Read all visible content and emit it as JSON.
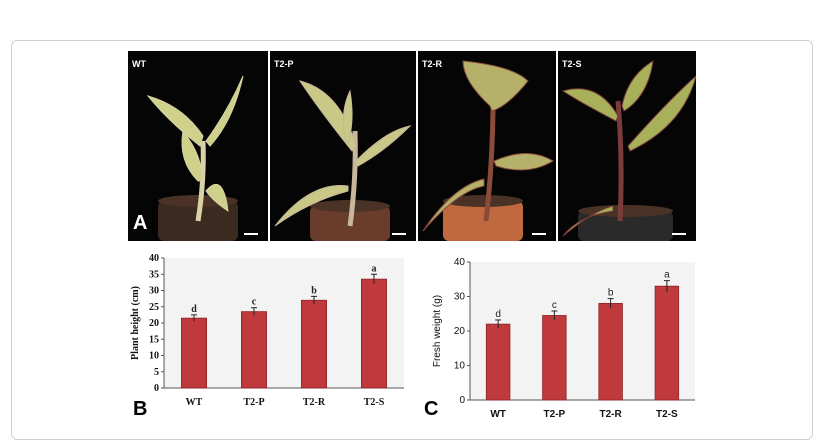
{
  "photos": [
    {
      "label": "WT",
      "stem_color": "#d8d2a6",
      "leaf_color": "#cfd08a",
      "pot_color": "#3a2a1f"
    },
    {
      "label": "T2-P",
      "stem_color": "#c8b79a",
      "leaf_color": "#c9c886",
      "pot_color": "#6a3c2c"
    },
    {
      "label": "T2-R",
      "stem_color": "#8a4b3b",
      "leaf_color": "#b5b06a",
      "pot_color": "#c0683e"
    },
    {
      "label": "T2-S",
      "stem_color": "#7a3c3a",
      "leaf_color": "#a8b05a",
      "pot_color": "#2a2a2a"
    }
  ],
  "panel_letters": {
    "a": "A",
    "b": "B",
    "c": "C"
  },
  "colors": {
    "bar": "#c0393c",
    "bar_edge": "#8e2528"
  },
  "chart_data": [
    {
      "type": "bar",
      "panel": "B",
      "categories": [
        "WT",
        "T2-P",
        "T2-R",
        "T2-S"
      ],
      "values": [
        21.5,
        23.5,
        27,
        33.5
      ],
      "errors": [
        1.0,
        1.2,
        1.2,
        1.5
      ],
      "letters": [
        "d",
        "c",
        "b",
        "a"
      ],
      "ylabel": "Plant height (cm)",
      "ylim": [
        0,
        40
      ],
      "yticks": [
        0,
        5,
        10,
        15,
        20,
        25,
        30,
        35,
        40
      ],
      "grid": false
    },
    {
      "type": "bar",
      "panel": "C",
      "categories": [
        "WT",
        "T2-P",
        "T2-R",
        "T2-S"
      ],
      "values": [
        22,
        24.5,
        28,
        33
      ],
      "errors": [
        1.2,
        1.3,
        1.4,
        1.6
      ],
      "letters": [
        "d",
        "c",
        "b",
        "a"
      ],
      "ylabel": "Fresh weight (g)",
      "ylim": [
        0,
        40
      ],
      "yticks": [
        0,
        10,
        20,
        30,
        40
      ],
      "grid": false
    }
  ]
}
